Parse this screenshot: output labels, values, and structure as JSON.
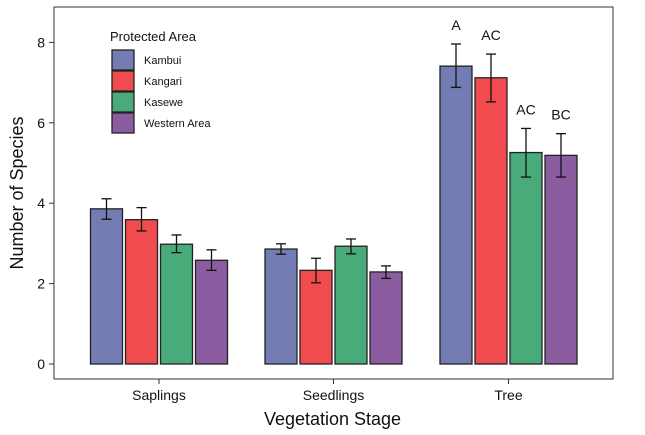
{
  "chart_data": {
    "type": "bar",
    "title": "",
    "xlabel": "Vegetation Stage",
    "ylabel": "Number of Species",
    "ylim": [
      -0.4,
      8.8
    ],
    "yticks": [
      0,
      2,
      4,
      6,
      8
    ],
    "grid": false,
    "categories": [
      "Saplings",
      "Seedlings",
      "Tree"
    ],
    "legend": {
      "title": "Protected Area",
      "placement": "top-left"
    },
    "series": [
      {
        "name": "Kambui",
        "color": "#737DB3",
        "values": [
          3.86,
          2.86,
          7.41
        ],
        "error_low": [
          3.6,
          2.73,
          6.88
        ],
        "error_high": [
          4.11,
          2.99,
          7.96
        ]
      },
      {
        "name": "Kangari",
        "color": "#F04C4F",
        "values": [
          3.59,
          2.33,
          7.12
        ],
        "error_low": [
          3.31,
          2.02,
          6.52
        ],
        "error_high": [
          3.89,
          2.63,
          7.71
        ]
      },
      {
        "name": "Kasewe",
        "color": "#4AAB7A",
        "values": [
          2.98,
          2.93,
          5.26
        ],
        "error_low": [
          2.77,
          2.74,
          4.65
        ],
        "error_high": [
          3.21,
          3.11,
          5.86
        ]
      },
      {
        "name": "Western Area",
        "color": "#8C5CA0",
        "values": [
          2.58,
          2.29,
          5.19
        ],
        "error_low": [
          2.33,
          2.13,
          4.65
        ],
        "error_high": [
          2.84,
          2.44,
          5.73
        ]
      }
    ],
    "annotations": [
      {
        "category": "Tree",
        "series": "Kambui",
        "text": "A"
      },
      {
        "category": "Tree",
        "series": "Kangari",
        "text": "AC"
      },
      {
        "category": "Tree",
        "series": "Kasewe",
        "text": "AC"
      },
      {
        "category": "Tree",
        "series": "Western Area",
        "text": "BC"
      }
    ]
  }
}
